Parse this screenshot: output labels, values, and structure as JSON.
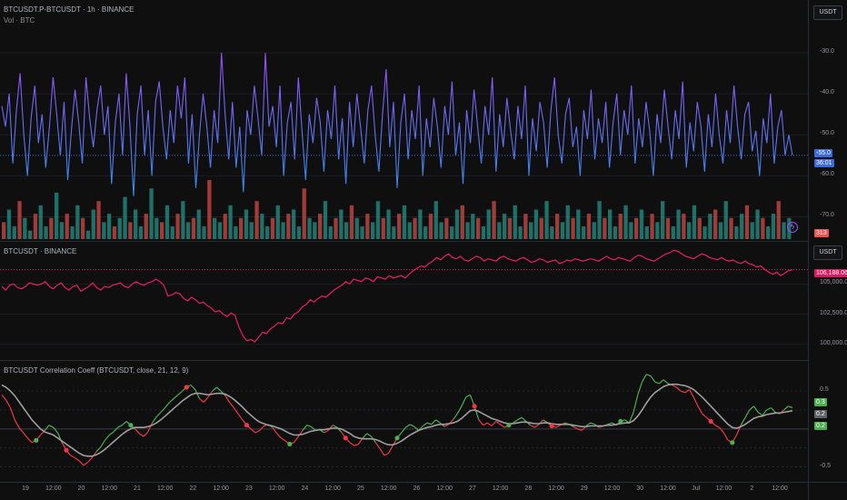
{
  "panes": {
    "main": {
      "title": "BTCUSDT.P-BTCUSDT · 1h · BINANCE",
      "subtitle": "Vol · BTC",
      "unit_button": "USDT"
    },
    "price": {
      "title": "BTCUSDT · BINANCE",
      "unit_button": "USDT"
    },
    "corr": {
      "title": "BTCUSDT Correlation Coeff (BTCUSDT, close, 21, 12, 9)"
    }
  },
  "colors": {
    "background": "#0f0f10",
    "purple": "#9c4dff",
    "blue": "#2f8fe8",
    "price_line": "#e91e63",
    "vol_up": "#26a69a",
    "vol_down": "#ef5350",
    "corr_up": "#4caf50",
    "corr_down": "#f23645",
    "signal": "#9e9e9e"
  },
  "badges": {
    "main_value": "-55.0",
    "main_countdown": "36:01",
    "volume": "313",
    "price": "106,188.06",
    "corr_a": "0.3",
    "corr_b": "0.2",
    "corr_c": "0.2"
  },
  "icons": {
    "event": "lightning-bolt-icon"
  },
  "chart_data": [
    {
      "type": "line",
      "title": "BTCUSDT.P-BTCUSDT · 1h · BINANCE",
      "ylim": [
        -73,
        -22
      ],
      "y_ticks": [
        "-30.0",
        "-40.0",
        "-50.0",
        "-60.0",
        "-70.0"
      ],
      "y_tick_values": [
        -30,
        -40,
        -50,
        -60,
        -70
      ],
      "last_value": -55.0,
      "grid": true,
      "values": [
        -43,
        -48,
        -40,
        -57,
        -44,
        -35,
        -50,
        -60,
        -46,
        -38,
        -52,
        -45,
        -58,
        -48,
        -36,
        -45,
        -55,
        -42,
        -61,
        -49,
        -39,
        -47,
        -57,
        -36,
        -46,
        -53,
        -44,
        -38,
        -50,
        -43,
        -62,
        -47,
        -40,
        -55,
        -35,
        -48,
        -65,
        -45,
        -38,
        -55,
        -44,
        -60,
        -42,
        -37,
        -48,
        -56,
        -44,
        -52,
        -38,
        -46,
        -36,
        -57,
        -45,
        -63,
        -50,
        -40,
        -48,
        -58,
        -44,
        -52,
        -30,
        -45,
        -56,
        -42,
        -58,
        -48,
        -64,
        -44,
        -50,
        -38,
        -46,
        -55,
        -30,
        -48,
        -43,
        -53,
        -38,
        -60,
        -47,
        -42,
        -56,
        -36,
        -49,
        -61,
        -45,
        -52,
        -41,
        -47,
        -59,
        -44,
        -51,
        -38,
        -56,
        -46,
        -62,
        -42,
        -53,
        -40,
        -48,
        -57,
        -44,
        -38,
        -50,
        -59,
        -45,
        -34,
        -53,
        -42,
        -63,
        -47,
        -40,
        -56,
        -44,
        -51,
        -38,
        -60,
        -46,
        -53,
        -41,
        -48,
        -58,
        -43,
        -50,
        -37,
        -55,
        -47,
        -62,
        -44,
        -52,
        -39,
        -48,
        -57,
        -43,
        -50,
        -36,
        -59,
        -45,
        -53,
        -41,
        -49,
        -56,
        -43,
        -51,
        -38,
        -60,
        -46,
        -54,
        -42,
        -47,
        -58,
        -44,
        -36,
        -50,
        -57,
        -45,
        -41,
        -53,
        -48,
        -60,
        -44,
        -51,
        -39,
        -56,
        -46,
        -52,
        -42,
        -58,
        -47,
        -40,
        -55,
        -44,
        -50,
        -38,
        -57,
        -46,
        -53,
        -42,
        -49,
        -60,
        -45,
        -52,
        -39,
        -48,
        -56,
        -44,
        -51,
        -37,
        -58,
        -47,
        -54,
        -42,
        -48,
        -59,
        -45,
        -53,
        -40,
        -50,
        -57,
        -44,
        -52,
        -38,
        -48,
        -56,
        -45,
        -42,
        -54,
        -49,
        -60,
        -46,
        -52,
        -40,
        -57,
        -48,
        -44,
        -55,
        -50,
        -55
      ],
      "y_categories_note": ""
    },
    {
      "type": "bar",
      "title": "Vol · BTC",
      "values": [
        4,
        7,
        3,
        9,
        5,
        2,
        6,
        8,
        3,
        5,
        11,
        4,
        6,
        3,
        8,
        5,
        2,
        7,
        9,
        4,
        6,
        3,
        5,
        10,
        4,
        7,
        3,
        6,
        12,
        5,
        4,
        8,
        3,
        6,
        9,
        4,
        5,
        7,
        3,
        14,
        5,
        4,
        6,
        8,
        3,
        5,
        7,
        4,
        9,
        6,
        3,
        5,
        8,
        4,
        6,
        7,
        3,
        12,
        5,
        4,
        6,
        9,
        3,
        5,
        7,
        4,
        8,
        5,
        3,
        6,
        4,
        9,
        5,
        7,
        3,
        6,
        8,
        4,
        5,
        7,
        3,
        6,
        9,
        4,
        5,
        3,
        7,
        8,
        4,
        6,
        5,
        3,
        7,
        9,
        4,
        6,
        5,
        8,
        3,
        6,
        4,
        7,
        5,
        9,
        3,
        6,
        4,
        8,
        5,
        7,
        3,
        6,
        4,
        9,
        5,
        7,
        3,
        6,
        8,
        4,
        5,
        7,
        3,
        6,
        4,
        9,
        5,
        3,
        7,
        6,
        4,
        8,
        5,
        3,
        6,
        7,
        4,
        9,
        5,
        3,
        6,
        8,
        4,
        7,
        5,
        3,
        6,
        9,
        4,
        5
      ],
      "directions": "alternating",
      "last_value": 313
    },
    {
      "type": "line",
      "title": "BTCUSDT · BINANCE",
      "ylim": [
        99000,
        108200
      ],
      "y_ticks": [
        "105,000.00",
        "102,500.00",
        "100,000.00"
      ],
      "y_tick_values": [
        105000,
        102500,
        100000
      ],
      "last_value": 106188.06,
      "grid": true,
      "values": [
        104800,
        104500,
        104900,
        105000,
        104700,
        104600,
        104800,
        105100,
        105000,
        104900,
        105000,
        105200,
        104800,
        104600,
        104900,
        105100,
        104700,
        104500,
        104800,
        104900,
        104400,
        104600,
        104800,
        105100,
        104700,
        104500,
        104800,
        104700,
        104900,
        105000,
        105100,
        104800,
        104700,
        105000,
        105200,
        105000,
        104900,
        105100,
        105200,
        105400,
        105200,
        104900,
        104000,
        104100,
        104300,
        104200,
        103800,
        103600,
        103900,
        103700,
        103400,
        103500,
        103200,
        103000,
        102700,
        102800,
        102500,
        102300,
        102600,
        102400,
        101400,
        100700,
        100300,
        100400,
        100200,
        100600,
        101000,
        100900,
        101300,
        101500,
        101800,
        101700,
        102200,
        102100,
        102500,
        102700,
        103100,
        103300,
        103700,
        103500,
        103800,
        104000,
        103900,
        104200,
        104500,
        104700,
        104900,
        105200,
        105000,
        105400,
        105300,
        105200,
        105500,
        105400,
        105200,
        105600,
        105500,
        105400,
        105700,
        105500,
        105600,
        105700,
        105500,
        105800,
        106100,
        106300,
        106500,
        106400,
        106700,
        106900,
        107200,
        107000,
        107300,
        107500,
        107200,
        107100,
        107300,
        107000,
        106900,
        107100,
        107300,
        107200,
        106900,
        107100,
        107000,
        106900,
        107200,
        107300,
        107100,
        107000,
        106900,
        107100,
        107200,
        107000,
        106800,
        106900,
        107100,
        107000,
        106800,
        106900,
        107000,
        106700,
        106800,
        107000,
        106900,
        107100,
        107000,
        106900,
        107000,
        107100,
        107000,
        106900,
        107100,
        107300,
        107100,
        107000,
        107200,
        107100,
        107000,
        106900,
        107200,
        107400,
        107300,
        107100,
        107000,
        106900,
        107100,
        107300,
        107500,
        107600,
        107800,
        107700,
        107500,
        107300,
        107200,
        107100,
        107300,
        107500,
        107400,
        107200,
        107100,
        107000,
        107200,
        107000,
        106900,
        107000,
        106800,
        106700,
        106900,
        106700,
        106600,
        106400,
        106500,
        106200,
        106000,
        105800,
        106000,
        105700,
        105900,
        106100,
        106188
      ]
    },
    {
      "type": "line",
      "title": "BTCUSDT Correlation Coeff (BTCUSDT, close, 21, 12, 9)",
      "ylim": [
        -0.65,
        0.85
      ],
      "y_ticks": [
        "0.5",
        "-0.5"
      ],
      "y_tick_values": [
        0.5,
        -0.5
      ],
      "grid": true,
      "series": [
        {
          "values": [
            0.45,
            0.38,
            0.28,
            0.12,
            0.02,
            -0.05,
            -0.12,
            -0.18,
            -0.15,
            -0.08,
            -0.02,
            0.05,
            0.02,
            -0.05,
            -0.18,
            -0.28,
            -0.35,
            -0.38,
            -0.42,
            -0.48,
            -0.44,
            -0.38,
            -0.3,
            -0.24,
            -0.15,
            -0.08,
            -0.04,
            0.02,
            0.05,
            0.1,
            0.05,
            0.0,
            -0.06,
            -0.1,
            -0.04,
            0.08,
            0.16,
            0.22,
            0.28,
            0.35,
            0.4,
            0.45,
            0.5,
            0.55,
            0.58,
            0.52,
            0.4,
            0.35,
            0.42,
            0.5,
            0.55,
            0.5,
            0.44,
            0.35,
            0.28,
            0.2,
            0.12,
            0.05,
            0.0,
            -0.05,
            -0.02,
            0.04,
            0.06,
            0.02,
            -0.06,
            -0.12,
            -0.16,
            -0.2,
            -0.18,
            -0.1,
            -0.02,
            0.05,
            0.03,
            -0.02,
            -0.01,
            -0.05,
            -0.02,
            0.05,
            0.02,
            -0.04,
            -0.12,
            -0.18,
            -0.22,
            -0.2,
            -0.12,
            -0.06,
            -0.1,
            -0.18,
            -0.26,
            -0.35,
            -0.32,
            -0.22,
            -0.12,
            -0.05,
            0.02,
            0.06,
            0.03,
            -0.02,
            0.04,
            0.08,
            0.06,
            0.12,
            0.08,
            0.03,
            0.06,
            0.12,
            0.2,
            0.3,
            0.42,
            0.45,
            0.3,
            0.12,
            0.05,
            0.08,
            0.04,
            0.1,
            0.06,
            0.02,
            0.05,
            0.08,
            0.12,
            0.15,
            0.1,
            0.05,
            0.02,
            0.06,
            0.12,
            0.08,
            0.04,
            0.02,
            0.05,
            0.08,
            0.06,
            0.03,
            0.0,
            -0.02,
            0.04,
            0.08,
            0.06,
            0.02,
            0.04,
            0.06,
            0.08,
            0.05,
            0.1,
            0.12,
            0.08,
            0.22,
            0.45,
            0.62,
            0.72,
            0.7,
            0.62,
            0.6,
            0.65,
            0.6,
            0.58,
            0.55,
            0.5,
            0.48,
            0.52,
            0.42,
            0.3,
            0.2,
            0.15,
            0.1,
            0.05,
            0.02,
            -0.05,
            -0.15,
            -0.18,
            -0.08,
            0.05,
            0.15,
            0.25,
            0.3,
            0.22,
            0.18,
            0.25,
            0.28,
            0.22,
            0.2,
            0.25,
            0.3,
            0.28
          ]
        },
        {
          "values": [
            0.58,
            0.55,
            0.5,
            0.44,
            0.36,
            0.28,
            0.2,
            0.12,
            0.06,
            0.0,
            -0.04,
            -0.06,
            -0.08,
            -0.12,
            -0.16,
            -0.2,
            -0.24,
            -0.28,
            -0.32,
            -0.35,
            -0.36,
            -0.36,
            -0.34,
            -0.31,
            -0.27,
            -0.22,
            -0.17,
            -0.12,
            -0.07,
            -0.03,
            0.0,
            0.02,
            0.02,
            0.02,
            0.03,
            0.05,
            0.08,
            0.12,
            0.17,
            0.22,
            0.27,
            0.32,
            0.37,
            0.41,
            0.45,
            0.47,
            0.47,
            0.46,
            0.45,
            0.46,
            0.47,
            0.47,
            0.46,
            0.43,
            0.39,
            0.34,
            0.29,
            0.23,
            0.18,
            0.13,
            0.09,
            0.07,
            0.05,
            0.04,
            0.02,
            0.0,
            -0.03,
            -0.06,
            -0.08,
            -0.08,
            -0.07,
            -0.05,
            -0.03,
            -0.02,
            -0.01,
            -0.01,
            0.0,
            0.01,
            0.01,
            0.0,
            -0.03,
            -0.06,
            -0.1,
            -0.12,
            -0.13,
            -0.13,
            -0.13,
            -0.14,
            -0.16,
            -0.19,
            -0.21,
            -0.21,
            -0.19,
            -0.16,
            -0.12,
            -0.08,
            -0.05,
            -0.02,
            0.0,
            0.02,
            0.03,
            0.05,
            0.06,
            0.06,
            0.07,
            0.08,
            0.1,
            0.14,
            0.19,
            0.24,
            0.25,
            0.23,
            0.2,
            0.17,
            0.14,
            0.12,
            0.1,
            0.08,
            0.07,
            0.07,
            0.08,
            0.09,
            0.09,
            0.08,
            0.07,
            0.07,
            0.08,
            0.08,
            0.07,
            0.06,
            0.06,
            0.06,
            0.06,
            0.05,
            0.04,
            0.03,
            0.03,
            0.04,
            0.04,
            0.04,
            0.04,
            0.05,
            0.05,
            0.06,
            0.07,
            0.08,
            0.08,
            0.11,
            0.17,
            0.25,
            0.34,
            0.42,
            0.48,
            0.52,
            0.56,
            0.58,
            0.59,
            0.59,
            0.58,
            0.57,
            0.55,
            0.52,
            0.47,
            0.42,
            0.36,
            0.3,
            0.24,
            0.18,
            0.12,
            0.06,
            0.02,
            0.01,
            0.03,
            0.06,
            0.1,
            0.14,
            0.16,
            0.17,
            0.19,
            0.2,
            0.21,
            0.21,
            0.22,
            0.23,
            0.24
          ]
        }
      ],
      "markers": [
        {
          "index": 8,
          "dir": "up"
        },
        {
          "index": 15,
          "dir": "down"
        },
        {
          "index": 30,
          "dir": "up"
        },
        {
          "index": 43,
          "dir": "down"
        },
        {
          "index": 57,
          "dir": "down"
        },
        {
          "index": 67,
          "dir": "up"
        },
        {
          "index": 80,
          "dir": "down"
        },
        {
          "index": 92,
          "dir": "up"
        },
        {
          "index": 110,
          "dir": "down"
        },
        {
          "index": 118,
          "dir": "up"
        },
        {
          "index": 128,
          "dir": "down"
        },
        {
          "index": 144,
          "dir": "up"
        },
        {
          "index": 165,
          "dir": "down"
        },
        {
          "index": 170,
          "dir": "up"
        }
      ]
    }
  ],
  "x_axis": {
    "labels": [
      "19",
      "12:00",
      "20",
      "12:00",
      "21",
      "12:00",
      "22",
      "12:00",
      "23",
      "12:00",
      "24",
      "12:00",
      "25",
      "12:00",
      "26",
      "12:00",
      "27",
      "12:00",
      "28",
      "12:00",
      "29",
      "12:00",
      "30",
      "12:00",
      "Jul",
      "12:00",
      "2",
      "12:00"
    ]
  }
}
